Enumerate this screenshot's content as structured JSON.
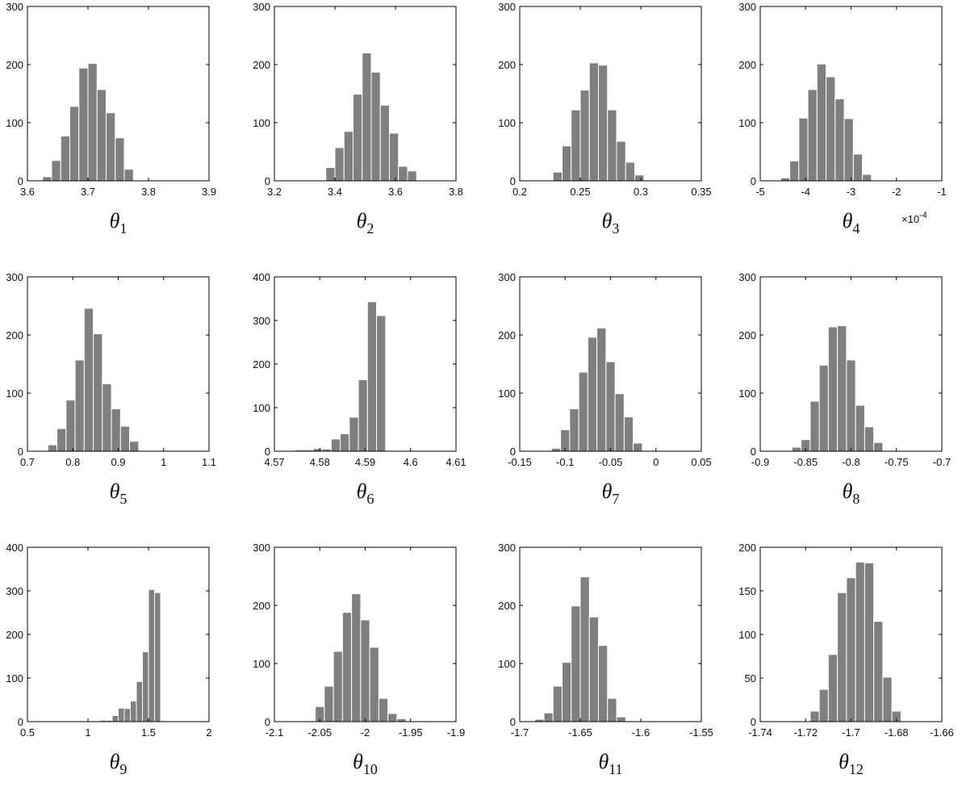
{
  "chart_data": [
    {
      "type": "bar",
      "xlabel_symbol": "θ",
      "xlabel_sub": "1",
      "xlim": [
        3.6,
        3.9
      ],
      "xticks": [
        "3.6",
        "3.7",
        "3.8",
        "3.9"
      ],
      "ylim": [
        0,
        300
      ],
      "yticks": [
        "0",
        "100",
        "200",
        "300"
      ],
      "bin_edges": [
        3.61,
        3.625,
        3.64,
        3.655,
        3.67,
        3.685,
        3.7,
        3.715,
        3.73,
        3.745,
        3.76,
        3.775,
        3.79,
        3.805,
        3.82,
        3.835,
        3.85,
        3.865,
        3.88
      ],
      "values": [
        0,
        7,
        35,
        77,
        128,
        194,
        202,
        157,
        117,
        74,
        20,
        0,
        0,
        0,
        0,
        0,
        0,
        0
      ]
    },
    {
      "type": "bar",
      "xlabel_symbol": "θ",
      "xlabel_sub": "2",
      "xlim": [
        3.2,
        3.8
      ],
      "xticks": [
        "3.2",
        "3.4",
        "3.6",
        "3.8"
      ],
      "ylim": [
        0,
        300
      ],
      "yticks": [
        "0",
        "100",
        "200",
        "300"
      ],
      "bin_edges": [
        3.22,
        3.25,
        3.28,
        3.31,
        3.34,
        3.37,
        3.4,
        3.43,
        3.46,
        3.49,
        3.52,
        3.55,
        3.58,
        3.61,
        3.64,
        3.67,
        3.7,
        3.73,
        3.76
      ],
      "values": [
        0,
        0,
        0,
        0,
        0,
        23,
        57,
        85,
        149,
        220,
        187,
        130,
        82,
        25,
        17,
        0,
        0,
        0
      ]
    },
    {
      "type": "bar",
      "xlabel_symbol": "θ",
      "xlabel_sub": "3",
      "xlim": [
        0.2,
        0.35
      ],
      "xticks": [
        "0.2",
        "0.25",
        "0.3",
        "0.35"
      ],
      "ylim": [
        0,
        300
      ],
      "yticks": [
        "0",
        "100",
        "200",
        "300"
      ],
      "bin_edges": [
        0.205,
        0.2125,
        0.22,
        0.2275,
        0.235,
        0.2425,
        0.25,
        0.2575,
        0.265,
        0.2725,
        0.28,
        0.2875,
        0.295,
        0.3025,
        0.31,
        0.3175,
        0.325,
        0.3325,
        0.34
      ],
      "values": [
        0,
        0,
        0,
        15,
        60,
        122,
        156,
        203,
        199,
        122,
        68,
        32,
        10,
        0,
        0,
        0,
        0,
        0
      ]
    },
    {
      "type": "bar",
      "xlabel_symbol": "θ",
      "xlabel_sub": "4",
      "multiplier": "×10",
      "multiplier_exp": "-4",
      "xlim": [
        -5,
        -1
      ],
      "xticks": [
        "-5",
        "-4",
        "-3",
        "-2",
        "-1"
      ],
      "ylim": [
        0,
        300
      ],
      "yticks": [
        "0",
        "100",
        "200",
        "300"
      ],
      "bin_edges": [
        -4.95,
        -4.75,
        -4.55,
        -4.35,
        -4.15,
        -3.95,
        -3.75,
        -3.55,
        -3.35,
        -3.15,
        -2.95,
        -2.75,
        -2.55,
        -2.35,
        -2.15,
        -1.95,
        -1.75,
        -1.55,
        -1.35
      ],
      "values": [
        0,
        0,
        5,
        34,
        108,
        157,
        201,
        179,
        141,
        107,
        46,
        11,
        0,
        0,
        0,
        0,
        0,
        0
      ]
    },
    {
      "type": "bar",
      "xlabel_symbol": "θ",
      "xlabel_sub": "5",
      "xlim": [
        0.7,
        1.1
      ],
      "xticks": [
        "0.7",
        "0.8",
        "0.9",
        "1",
        "1.1"
      ],
      "ylim": [
        0,
        300
      ],
      "yticks": [
        "0",
        "100",
        "200",
        "300"
      ],
      "bin_edges": [
        0.705,
        0.725,
        0.745,
        0.765,
        0.785,
        0.805,
        0.825,
        0.845,
        0.865,
        0.885,
        0.905,
        0.925,
        0.945,
        0.965,
        0.985,
        1.005,
        1.025,
        1.045,
        1.065
      ],
      "values": [
        0,
        0,
        11,
        39,
        88,
        157,
        246,
        202,
        116,
        73,
        43,
        17,
        0,
        0,
        0,
        0,
        0,
        0
      ]
    },
    {
      "type": "bar",
      "xlabel_symbol": "θ",
      "xlabel_sub": "6",
      "xlim": [
        4.57,
        4.61
      ],
      "xticks": [
        "4.57",
        "4.58",
        "4.59",
        "4.6",
        "4.61"
      ],
      "ylim": [
        0,
        400
      ],
      "yticks": [
        "0",
        "100",
        "200",
        "300",
        "400"
      ],
      "bin_edges": [
        4.5705,
        4.5725,
        4.5745,
        4.5765,
        4.5785,
        4.5805,
        4.5825,
        4.5845,
        4.5865,
        4.5885,
        4.5905,
        4.5925,
        4.5945,
        4.5965,
        4.5985,
        4.6005,
        4.6025,
        4.6045
      ],
      "values": [
        0,
        0,
        3,
        3,
        6,
        5,
        28,
        40,
        78,
        164,
        343,
        311,
        0,
        0,
        0,
        0,
        0
      ]
    },
    {
      "type": "bar",
      "xlabel_symbol": "θ",
      "xlabel_sub": "7",
      "xlim": [
        -0.15,
        0.05
      ],
      "xticks": [
        "-0.15",
        "-0.1",
        "-0.05",
        "0",
        "0.05"
      ],
      "ylim": [
        0,
        300
      ],
      "yticks": [
        "0",
        "100",
        "200",
        "300"
      ],
      "bin_edges": [
        -0.145,
        -0.135,
        -0.125,
        -0.115,
        -0.105,
        -0.095,
        -0.085,
        -0.075,
        -0.065,
        -0.055,
        -0.045,
        -0.035,
        -0.025,
        -0.015,
        -0.005,
        0.005,
        0.015,
        0.025,
        0.035,
        0.045
      ],
      "values": [
        0,
        0,
        0,
        5,
        37,
        73,
        136,
        196,
        212,
        154,
        99,
        59,
        14,
        0,
        0,
        0,
        0,
        0,
        0
      ]
    },
    {
      "type": "bar",
      "xlabel_symbol": "θ",
      "xlabel_sub": "8",
      "xlim": [
        -0.9,
        -0.7
      ],
      "xticks": [
        "-0.9",
        "-0.85",
        "-0.8",
        "-0.75",
        "-0.7"
      ],
      "ylim": [
        0,
        300
      ],
      "yticks": [
        "0",
        "100",
        "200",
        "300"
      ],
      "bin_edges": [
        -0.895,
        -0.885,
        -0.875,
        -0.865,
        -0.855,
        -0.845,
        -0.835,
        -0.825,
        -0.815,
        -0.805,
        -0.795,
        -0.785,
        -0.775,
        -0.765,
        -0.755,
        -0.745,
        -0.735,
        -0.725,
        -0.715,
        -0.705
      ],
      "values": [
        0,
        0,
        0,
        7,
        20,
        86,
        148,
        214,
        216,
        157,
        79,
        42,
        15,
        0,
        0,
        0,
        0,
        0,
        0
      ]
    },
    {
      "type": "bar",
      "xlabel_symbol": "θ",
      "xlabel_sub": "9",
      "xlim": [
        0.5,
        2
      ],
      "xticks": [
        "0.5",
        "1",
        "1.5",
        "2"
      ],
      "ylim": [
        0,
        400
      ],
      "yticks": [
        "0",
        "100",
        "200",
        "300",
        "400"
      ],
      "bin_edges": [
        0.55,
        0.6,
        0.65,
        0.7,
        0.75,
        0.8,
        0.85,
        0.9,
        0.95,
        1.0,
        1.05,
        1.1,
        1.15,
        1.2,
        1.25,
        1.3,
        1.35,
        1.4,
        1.45,
        1.5,
        1.55,
        1.6,
        1.65,
        1.7,
        1.75,
        1.8,
        1.85,
        1.9,
        1.95
      ],
      "values": [
        0,
        0,
        0,
        0,
        0,
        0,
        0,
        0,
        0,
        0,
        0,
        3,
        3,
        14,
        31,
        30,
        47,
        92,
        160,
        303,
        296,
        0,
        0,
        0,
        0,
        0,
        0,
        0
      ]
    },
    {
      "type": "bar",
      "xlabel_symbol": "θ",
      "xlabel_sub": "10",
      "xlim": [
        -2.1,
        -1.9
      ],
      "xticks": [
        "-2.1",
        "-2.05",
        "-2",
        "-1.95",
        "-1.9"
      ],
      "ylim": [
        0,
        300
      ],
      "yticks": [
        "0",
        "100",
        "200",
        "300"
      ],
      "bin_edges": [
        -2.095,
        -2.085,
        -2.075,
        -2.065,
        -2.055,
        -2.045,
        -2.035,
        -2.025,
        -2.015,
        -2.005,
        -1.995,
        -1.985,
        -1.975,
        -1.965,
        -1.955,
        -1.945,
        -1.935,
        -1.925,
        -1.915,
        -1.905
      ],
      "values": [
        0,
        0,
        0,
        0,
        26,
        61,
        121,
        188,
        220,
        175,
        128,
        40,
        14,
        5,
        0,
        0,
        0,
        0,
        0
      ]
    },
    {
      "type": "bar",
      "xlabel_symbol": "θ",
      "xlabel_sub": "11",
      "xlim": [
        -1.7,
        -1.55
      ],
      "xticks": [
        "-1.7",
        "-1.65",
        "-1.6",
        "-1.55"
      ],
      "ylim": [
        0,
        300
      ],
      "yticks": [
        "0",
        "100",
        "200",
        "300"
      ],
      "bin_edges": [
        -1.695,
        -1.6875,
        -1.68,
        -1.6725,
        -1.665,
        -1.6575,
        -1.65,
        -1.6425,
        -1.635,
        -1.6275,
        -1.62,
        -1.6125,
        -1.605,
        -1.5975,
        -1.59,
        -1.5825,
        -1.575,
        -1.5675,
        -1.56
      ],
      "values": [
        0,
        4,
        15,
        61,
        102,
        199,
        249,
        180,
        131,
        40,
        8,
        0,
        0,
        0,
        0,
        0,
        0,
        0
      ]
    },
    {
      "type": "bar",
      "xlabel_symbol": "θ",
      "xlabel_sub": "12",
      "xlim": [
        -1.74,
        -1.66
      ],
      "xticks": [
        "-1.74",
        "-1.72",
        "-1.7",
        "-1.68",
        "-1.66"
      ],
      "ylim": [
        0,
        200
      ],
      "yticks": [
        "0",
        "50",
        "100",
        "150",
        "200"
      ],
      "bin_edges": [
        -1.738,
        -1.734,
        -1.73,
        -1.726,
        -1.722,
        -1.718,
        -1.714,
        -1.71,
        -1.706,
        -1.702,
        -1.698,
        -1.694,
        -1.69,
        -1.686,
        -1.682,
        -1.678,
        -1.674,
        -1.67,
        -1.666,
        -1.662
      ],
      "values": [
        0,
        0,
        0,
        0,
        0,
        12,
        37,
        77,
        148,
        165,
        183,
        182,
        115,
        51,
        12,
        0,
        0,
        0,
        0
      ]
    }
  ],
  "colors": {
    "bar": "#7f7f7f",
    "bar_edge": "#ffffff",
    "axis": "#000000"
  }
}
